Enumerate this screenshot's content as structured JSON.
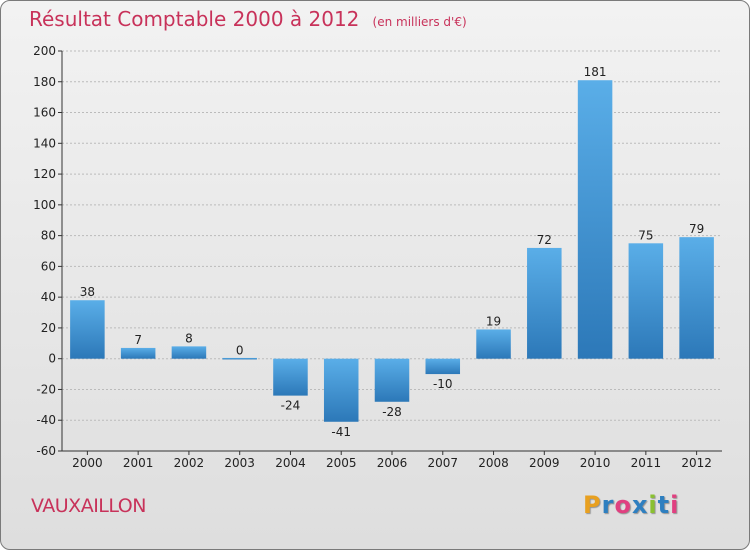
{
  "header": {
    "title": "Résultat Comptable 2000 à 2012",
    "unit": "(en milliers d'€)"
  },
  "footer": {
    "location": "VAUXAILLON",
    "brand": "Proxiti",
    "brand_colors": [
      "#e8a020",
      "#2e7fc0",
      "#e04080",
      "#2e7fc0",
      "#8ac030",
      "#2e7fc0",
      "#e04080"
    ]
  },
  "colors": {
    "title": "#c8325a",
    "bar_light": "#5aaee8",
    "bar_dark": "#2c78b8",
    "grid": "#bbbbbb"
  },
  "chart_data": {
    "type": "bar",
    "title": "Résultat Comptable 2000 à 2012",
    "xlabel": "",
    "ylabel": "",
    "categories": [
      "2000",
      "2001",
      "2002",
      "2003",
      "2004",
      "2005",
      "2006",
      "2007",
      "2008",
      "2009",
      "2010",
      "2011",
      "2012"
    ],
    "values": [
      38,
      7,
      8,
      0,
      -24,
      -41,
      -28,
      -10,
      19,
      72,
      181,
      75,
      79
    ],
    "ylim": [
      -60,
      200
    ],
    "yticks": [
      -60,
      -40,
      -20,
      0,
      20,
      40,
      60,
      80,
      100,
      120,
      140,
      160,
      180,
      200
    ],
    "grid": true,
    "legend": "none"
  }
}
